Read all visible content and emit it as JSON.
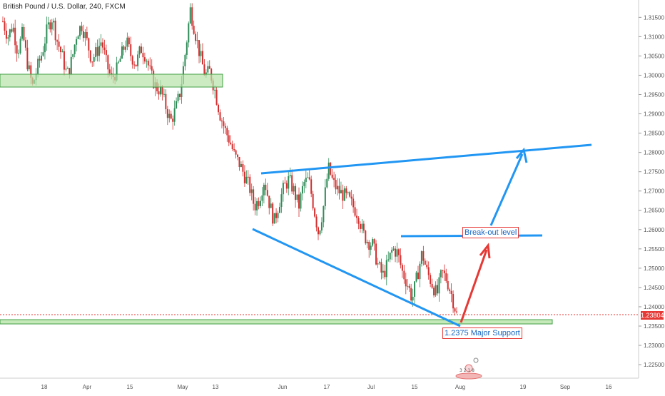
{
  "window": {
    "title": "British Pound / U.S. Dollar, 240, FXCM"
  },
  "colors": {
    "up_candle": "#2e8b57",
    "down_candle": "#d32f2f",
    "trendline": "#2196f3",
    "arrow_up": "#2196f3",
    "arrow_red": "#e53935",
    "support_zone_fill": "#b6e3a8",
    "support_zone_border": "#43a047",
    "price_line": "#e53935",
    "axis_text": "#555555"
  },
  "chart_data": {
    "type": "candlestick",
    "title": "British Pound / U.S. Dollar, 240, FXCM",
    "symbol": "GBPUSD",
    "timeframe": "240",
    "ylim": [
      1.2215,
      1.3195
    ],
    "y_ticks": [
      "1.31500",
      "1.31000",
      "1.30500",
      "1.30000",
      "1.29500",
      "1.29000",
      "1.28500",
      "1.28000",
      "1.27500",
      "1.27000",
      "1.26500",
      "1.26000",
      "1.25500",
      "1.25000",
      "1.24500",
      "1.24000",
      "1.23500",
      "1.23000",
      "1.22500"
    ],
    "x_ticks": [
      "18",
      "Apr",
      "15",
      "May",
      "13",
      "Jun",
      "17",
      "Jul",
      "15",
      "Aug",
      "19",
      "Sep",
      "16"
    ],
    "current_price": "1.23804",
    "closes_path": [
      1.314,
      1.31,
      1.313,
      1.306,
      1.311,
      1.303,
      1.297,
      1.302,
      1.306,
      1.312,
      1.315,
      1.309,
      1.305,
      1.3,
      1.304,
      1.311,
      1.313,
      1.309,
      1.304,
      1.306,
      1.309,
      1.303,
      1.299,
      1.301,
      1.305,
      1.309,
      1.305,
      1.303,
      1.307,
      1.305,
      1.3,
      1.297,
      1.296,
      1.292,
      1.288,
      1.291,
      1.296,
      1.306,
      1.317,
      1.311,
      1.305,
      1.3,
      1.301,
      1.296,
      1.29,
      1.286,
      1.283,
      1.279,
      1.277,
      1.274,
      1.271,
      1.266,
      1.268,
      1.273,
      1.267,
      1.262,
      1.267,
      1.271,
      1.273,
      1.27,
      1.266,
      1.272,
      1.273,
      1.266,
      1.259,
      1.266,
      1.276,
      1.272,
      1.27,
      1.269,
      1.268,
      1.266,
      1.264,
      1.259,
      1.257,
      1.256,
      1.251,
      1.248,
      1.251,
      1.255,
      1.254,
      1.249,
      1.246,
      1.242,
      1.248,
      1.254,
      1.249,
      1.246,
      1.243,
      1.249,
      1.247,
      1.243,
      1.238
    ],
    "annotations": {
      "support_zone_upper": {
        "low": 1.2975,
        "high": 1.301
      },
      "support_zone_lower": {
        "low": 1.2365,
        "high": 1.2372
      },
      "upper_trendline": {
        "from": {
          "date": "May 21",
          "price": 1.275
        },
        "to": {
          "date": "Sep 9",
          "price": 1.282
        }
      },
      "lower_trendline": {
        "from": {
          "date": "May 21",
          "price": 1.2605
        },
        "to": {
          "date": "Jul 30",
          "price": 1.2375
        }
      },
      "breakout_line": {
        "price": 1.2588
      },
      "labels": [
        "Break-out level",
        "1.2375 Major Support"
      ]
    }
  }
}
